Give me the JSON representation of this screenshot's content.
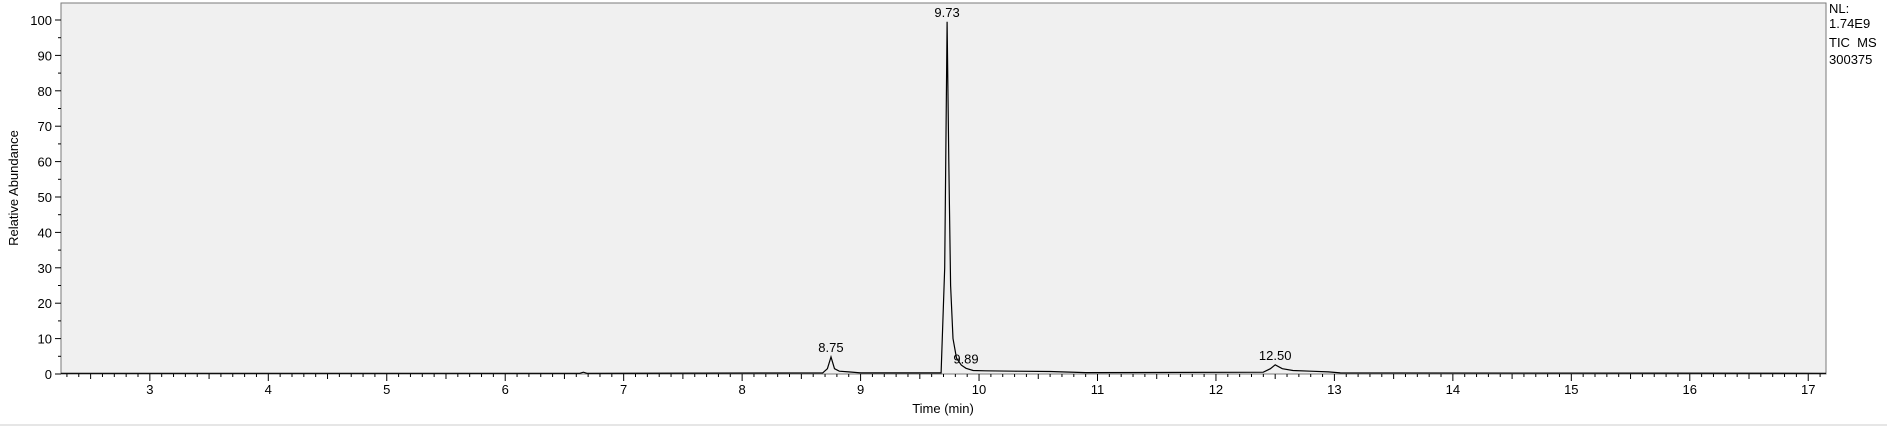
{
  "chart_data": {
    "type": "line",
    "title": "",
    "xlabel": "Time (min)",
    "ylabel": "Relative Abundance",
    "xlim": [
      2.25,
      17.15
    ],
    "ylim": [
      0,
      100
    ],
    "x_ticks": [
      3,
      4,
      5,
      6,
      7,
      8,
      9,
      10,
      11,
      12,
      13,
      14,
      15,
      16,
      17
    ],
    "y_ticks": [
      0,
      10,
      20,
      30,
      40,
      50,
      60,
      70,
      80,
      90,
      100
    ],
    "grid": false,
    "series": [
      {
        "x": [
          2.25,
          6.63,
          6.66,
          6.69,
          8.68,
          8.72,
          8.75,
          8.78,
          8.82,
          8.9,
          9.0,
          9.68,
          9.71,
          9.73,
          9.745,
          9.76,
          9.78,
          9.81,
          9.85,
          9.89,
          9.95,
          10.05,
          10.3,
          10.6,
          10.9,
          12.4,
          12.46,
          12.5,
          12.56,
          12.65,
          12.8,
          12.95,
          13.05,
          17.15
        ],
        "y": [
          0.2,
          0.2,
          0.5,
          0.2,
          0.3,
          1.5,
          4.8,
          1.5,
          0.8,
          0.6,
          0.3,
          0.3,
          30,
          99.5,
          60,
          25,
          10,
          4.5,
          2.5,
          1.6,
          1.0,
          0.9,
          0.8,
          0.7,
          0.4,
          0.5,
          1.5,
          2.6,
          1.5,
          1.0,
          0.8,
          0.6,
          0.3,
          0.2
        ]
      }
    ],
    "peak_labels": [
      {
        "x": 8.75,
        "y": 4.8,
        "text": "8.75"
      },
      {
        "x": 9.73,
        "y": 99.5,
        "text": "9.73"
      },
      {
        "x": 9.89,
        "y": 1.6,
        "text": "9.89"
      },
      {
        "x": 12.5,
        "y": 2.6,
        "text": "12.50"
      }
    ],
    "annotations": [
      "NL:",
      "1.74E9",
      "TIC  MS",
      "300375"
    ]
  }
}
